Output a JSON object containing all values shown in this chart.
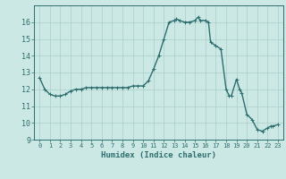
{
  "x": [
    0,
    0.5,
    1,
    1.5,
    2,
    2.5,
    3,
    3.5,
    4,
    4.5,
    5,
    5.5,
    6,
    6.5,
    7,
    7.5,
    8,
    8.5,
    9,
    9.5,
    10,
    10.5,
    11,
    11.5,
    12,
    12.5,
    13,
    13.2,
    13.5,
    14,
    14.5,
    15,
    15.3,
    15.5,
    16,
    16.3,
    16.5,
    17,
    17.5,
    18,
    18.3,
    18.5,
    19,
    19.3,
    19.5,
    20,
    20.5,
    21,
    21.5,
    22,
    22.3,
    22.5,
    23
  ],
  "y": [
    12.7,
    12.0,
    11.7,
    11.6,
    11.6,
    11.7,
    11.9,
    12.0,
    12.0,
    12.1,
    12.1,
    12.1,
    12.1,
    12.1,
    12.1,
    12.1,
    12.1,
    12.1,
    12.2,
    12.2,
    12.2,
    12.5,
    13.2,
    14.0,
    15.0,
    16.0,
    16.1,
    16.2,
    16.1,
    16.0,
    16.0,
    16.1,
    16.3,
    16.1,
    16.1,
    16.0,
    14.8,
    14.6,
    14.4,
    12.0,
    11.6,
    11.6,
    12.6,
    12.0,
    11.8,
    10.5,
    10.2,
    9.6,
    9.5,
    9.7,
    9.8,
    9.8,
    9.9
  ],
  "line_color": "#2d6e6e",
  "marker_color": "#2d6e6e",
  "bg_color": "#cce8e4",
  "grid_color": "#aacfcb",
  "xlabel": "Humidex (Indice chaleur)",
  "xlim": [
    -0.5,
    23.5
  ],
  "ylim": [
    9,
    17
  ],
  "yticks": [
    9,
    10,
    11,
    12,
    13,
    14,
    15,
    16
  ],
  "xticks": [
    0,
    1,
    2,
    3,
    4,
    5,
    6,
    7,
    8,
    9,
    10,
    11,
    12,
    13,
    14,
    15,
    16,
    17,
    18,
    19,
    20,
    21,
    22,
    23
  ],
  "marker_size": 2.5,
  "line_width": 1.0
}
